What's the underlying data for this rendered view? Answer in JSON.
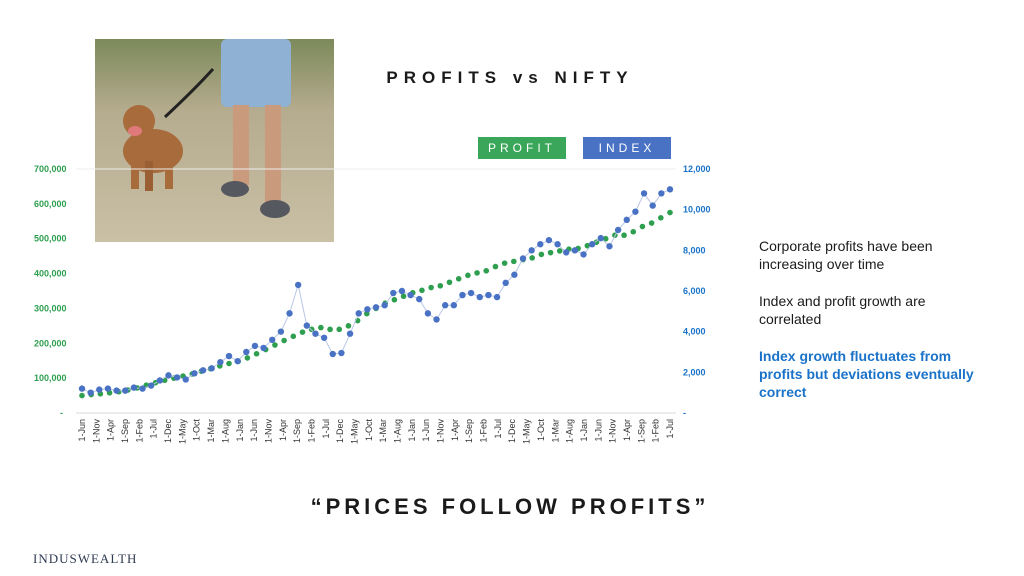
{
  "slide": {
    "title": "PROFITS vs NIFTY",
    "quote": "“PRICES FOLLOW PROFITS”",
    "brand": "INDUSWEALTH",
    "notes": [
      "Corporate profits have been increasing over time",
      "Index and profit growth are correlated",
      "Index growth fluctuates from profits but deviations eventually correct"
    ],
    "note_colors": [
      "#1a1a1a",
      "#1a1a1a",
      "#1a73c9"
    ]
  },
  "photo": {
    "icon": "dog-walking-photo"
  },
  "chart_data": {
    "type": "scatter",
    "grid": false,
    "legend_placement": "top-right",
    "series": [
      {
        "name": "PROFIT",
        "axis": "left",
        "color": "#2e9e4f",
        "values": [
          50000,
          53000,
          55000,
          58000,
          61000,
          66000,
          72000,
          80000,
          87000,
          94000,
          100000,
          106000,
          112000,
          120000,
          127000,
          135000,
          142000,
          148000,
          158000,
          170000,
          182000,
          195000,
          208000,
          220000,
          232000,
          240000,
          245000,
          240000,
          240000,
          250000,
          265000,
          285000,
          300000,
          315000,
          325000,
          335000,
          345000,
          352000,
          360000,
          365000,
          375000,
          385000,
          395000,
          402000,
          408000,
          420000,
          430000,
          435000,
          440000,
          445000,
          455000,
          460000,
          465000,
          470000,
          472000,
          480000,
          490000,
          500000,
          510000,
          510000,
          520000,
          535000,
          545000,
          560000,
          575000
        ]
      },
      {
        "name": "INDEX",
        "axis": "right",
        "color": "#4a72c4",
        "values": [
          1200,
          1000,
          1150,
          1200,
          1100,
          1100,
          1250,
          1200,
          1350,
          1600,
          1850,
          1750,
          1650,
          1950,
          2100,
          2200,
          2500,
          2800,
          2550,
          3000,
          3300,
          3200,
          3600,
          4000,
          4900,
          6300,
          4300,
          3900,
          3700,
          2900,
          2950,
          3900,
          4900,
          5100,
          5200,
          5300,
          5900,
          6000,
          5800,
          5600,
          4900,
          4600,
          5300,
          5300,
          5800,
          5900,
          5700,
          5800,
          5700,
          6400,
          6800,
          7600,
          8000,
          8300,
          8500,
          8300,
          7900,
          8000,
          7800,
          8300,
          8600,
          8200,
          9000,
          9500,
          9900,
          10800,
          10200,
          10800,
          11000
        ]
      }
    ],
    "x_tick_labels": [
      "1-Jun",
      "1-Nov",
      "1-Apr",
      "1-Sep",
      "1-Feb",
      "1-Jul",
      "1-Dec",
      "1-May",
      "1-Oct",
      "1-Mar",
      "1-Aug",
      "1-Jan",
      "1-Jun",
      "1-Nov",
      "1-Apr",
      "1-Sep",
      "1-Feb",
      "1-Jul",
      "1-Dec",
      "1-May",
      "1-Oct",
      "1-Mar",
      "1-Aug",
      "1-Jan",
      "1-Jun",
      "1-Nov",
      "1-Apr",
      "1-Sep",
      "1-Feb",
      "1-Jul",
      "1-Dec",
      "1-May",
      "1-Oct",
      "1-Mar",
      "1-Aug",
      "1-Jan",
      "1-Jun",
      "1-Nov",
      "1-Apr",
      "1-Sep",
      "1-Feb",
      "1-Jul"
    ],
    "left_axis": {
      "ylim": [
        0,
        700000
      ],
      "tick_values": [
        0,
        100000,
        200000,
        300000,
        400000,
        500000,
        600000,
        700000
      ],
      "tick_labels": [
        "-",
        "100,000",
        "200,000",
        "300,000",
        "400,000",
        "500,000",
        "600,000",
        "700,000"
      ],
      "color": "#2e9e4f"
    },
    "right_axis": {
      "ylim": [
        0,
        12000
      ],
      "tick_values": [
        0,
        2000,
        4000,
        6000,
        8000,
        10000,
        12000
      ],
      "tick_labels": [
        "-",
        "2,000",
        "4,000",
        "6,000",
        "8,000",
        "10,000",
        "12,000"
      ],
      "color": "#1a73c9"
    },
    "legend": [
      "PROFIT",
      "INDEX"
    ],
    "legend_colors": [
      "#3aa65a",
      "#4a72c4"
    ]
  }
}
